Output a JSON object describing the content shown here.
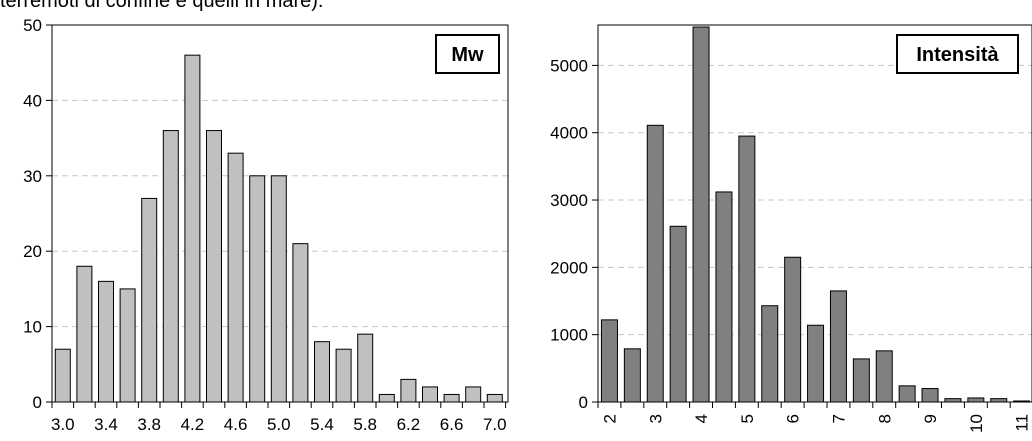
{
  "caption_fragment": "terremoti di confine e quelli in mare).",
  "chart_data": [
    {
      "type": "bar",
      "legend_box_label": "Mw",
      "bar_color": "#c0c0c0",
      "ylim": [
        0,
        50
      ],
      "yticks": [
        0,
        10,
        20,
        30,
        40,
        50
      ],
      "grid": "horizontal dashed",
      "categories": [
        "3.0",
        "3.2",
        "3.4",
        "3.6",
        "3.8",
        "4.0",
        "4.2",
        "4.4",
        "4.6",
        "4.8",
        "5.0",
        "5.2",
        "5.4",
        "5.6",
        "5.8",
        "6.0",
        "6.2",
        "6.4",
        "6.6",
        "6.8",
        "7.0"
      ],
      "xtick_labels": [
        "3.0",
        "3.4",
        "3.8",
        "4.2",
        "4.6",
        "5.0",
        "5.4",
        "5.8",
        "6.2",
        "6.6",
        "7.0"
      ],
      "values": [
        7,
        18,
        16,
        15,
        27,
        36,
        46,
        36,
        33,
        30,
        30,
        21,
        8,
        7,
        9,
        1,
        3,
        2,
        1,
        2,
        1
      ]
    },
    {
      "type": "bar",
      "legend_box_label": "Intensità",
      "bar_color": "#808080",
      "ylim": [
        0,
        5600
      ],
      "yticks": [
        0,
        1000,
        2000,
        3000,
        4000,
        5000
      ],
      "grid": "horizontal dashed",
      "categories": [
        "2",
        "2.5",
        "3",
        "3.5",
        "4",
        "4.5",
        "5",
        "5.5",
        "6",
        "6.5",
        "7",
        "7.5",
        "8",
        "8.5",
        "9",
        "9.5",
        "10",
        "10.5",
        "11"
      ],
      "xtick_labels": [
        "2",
        "3",
        "4",
        "5",
        "6",
        "7",
        "8",
        "9",
        "10",
        "11"
      ],
      "values": [
        1220,
        790,
        4110,
        2610,
        5570,
        3120,
        3950,
        1430,
        2150,
        1140,
        1650,
        640,
        760,
        240,
        200,
        50,
        60,
        50,
        15
      ]
    }
  ]
}
